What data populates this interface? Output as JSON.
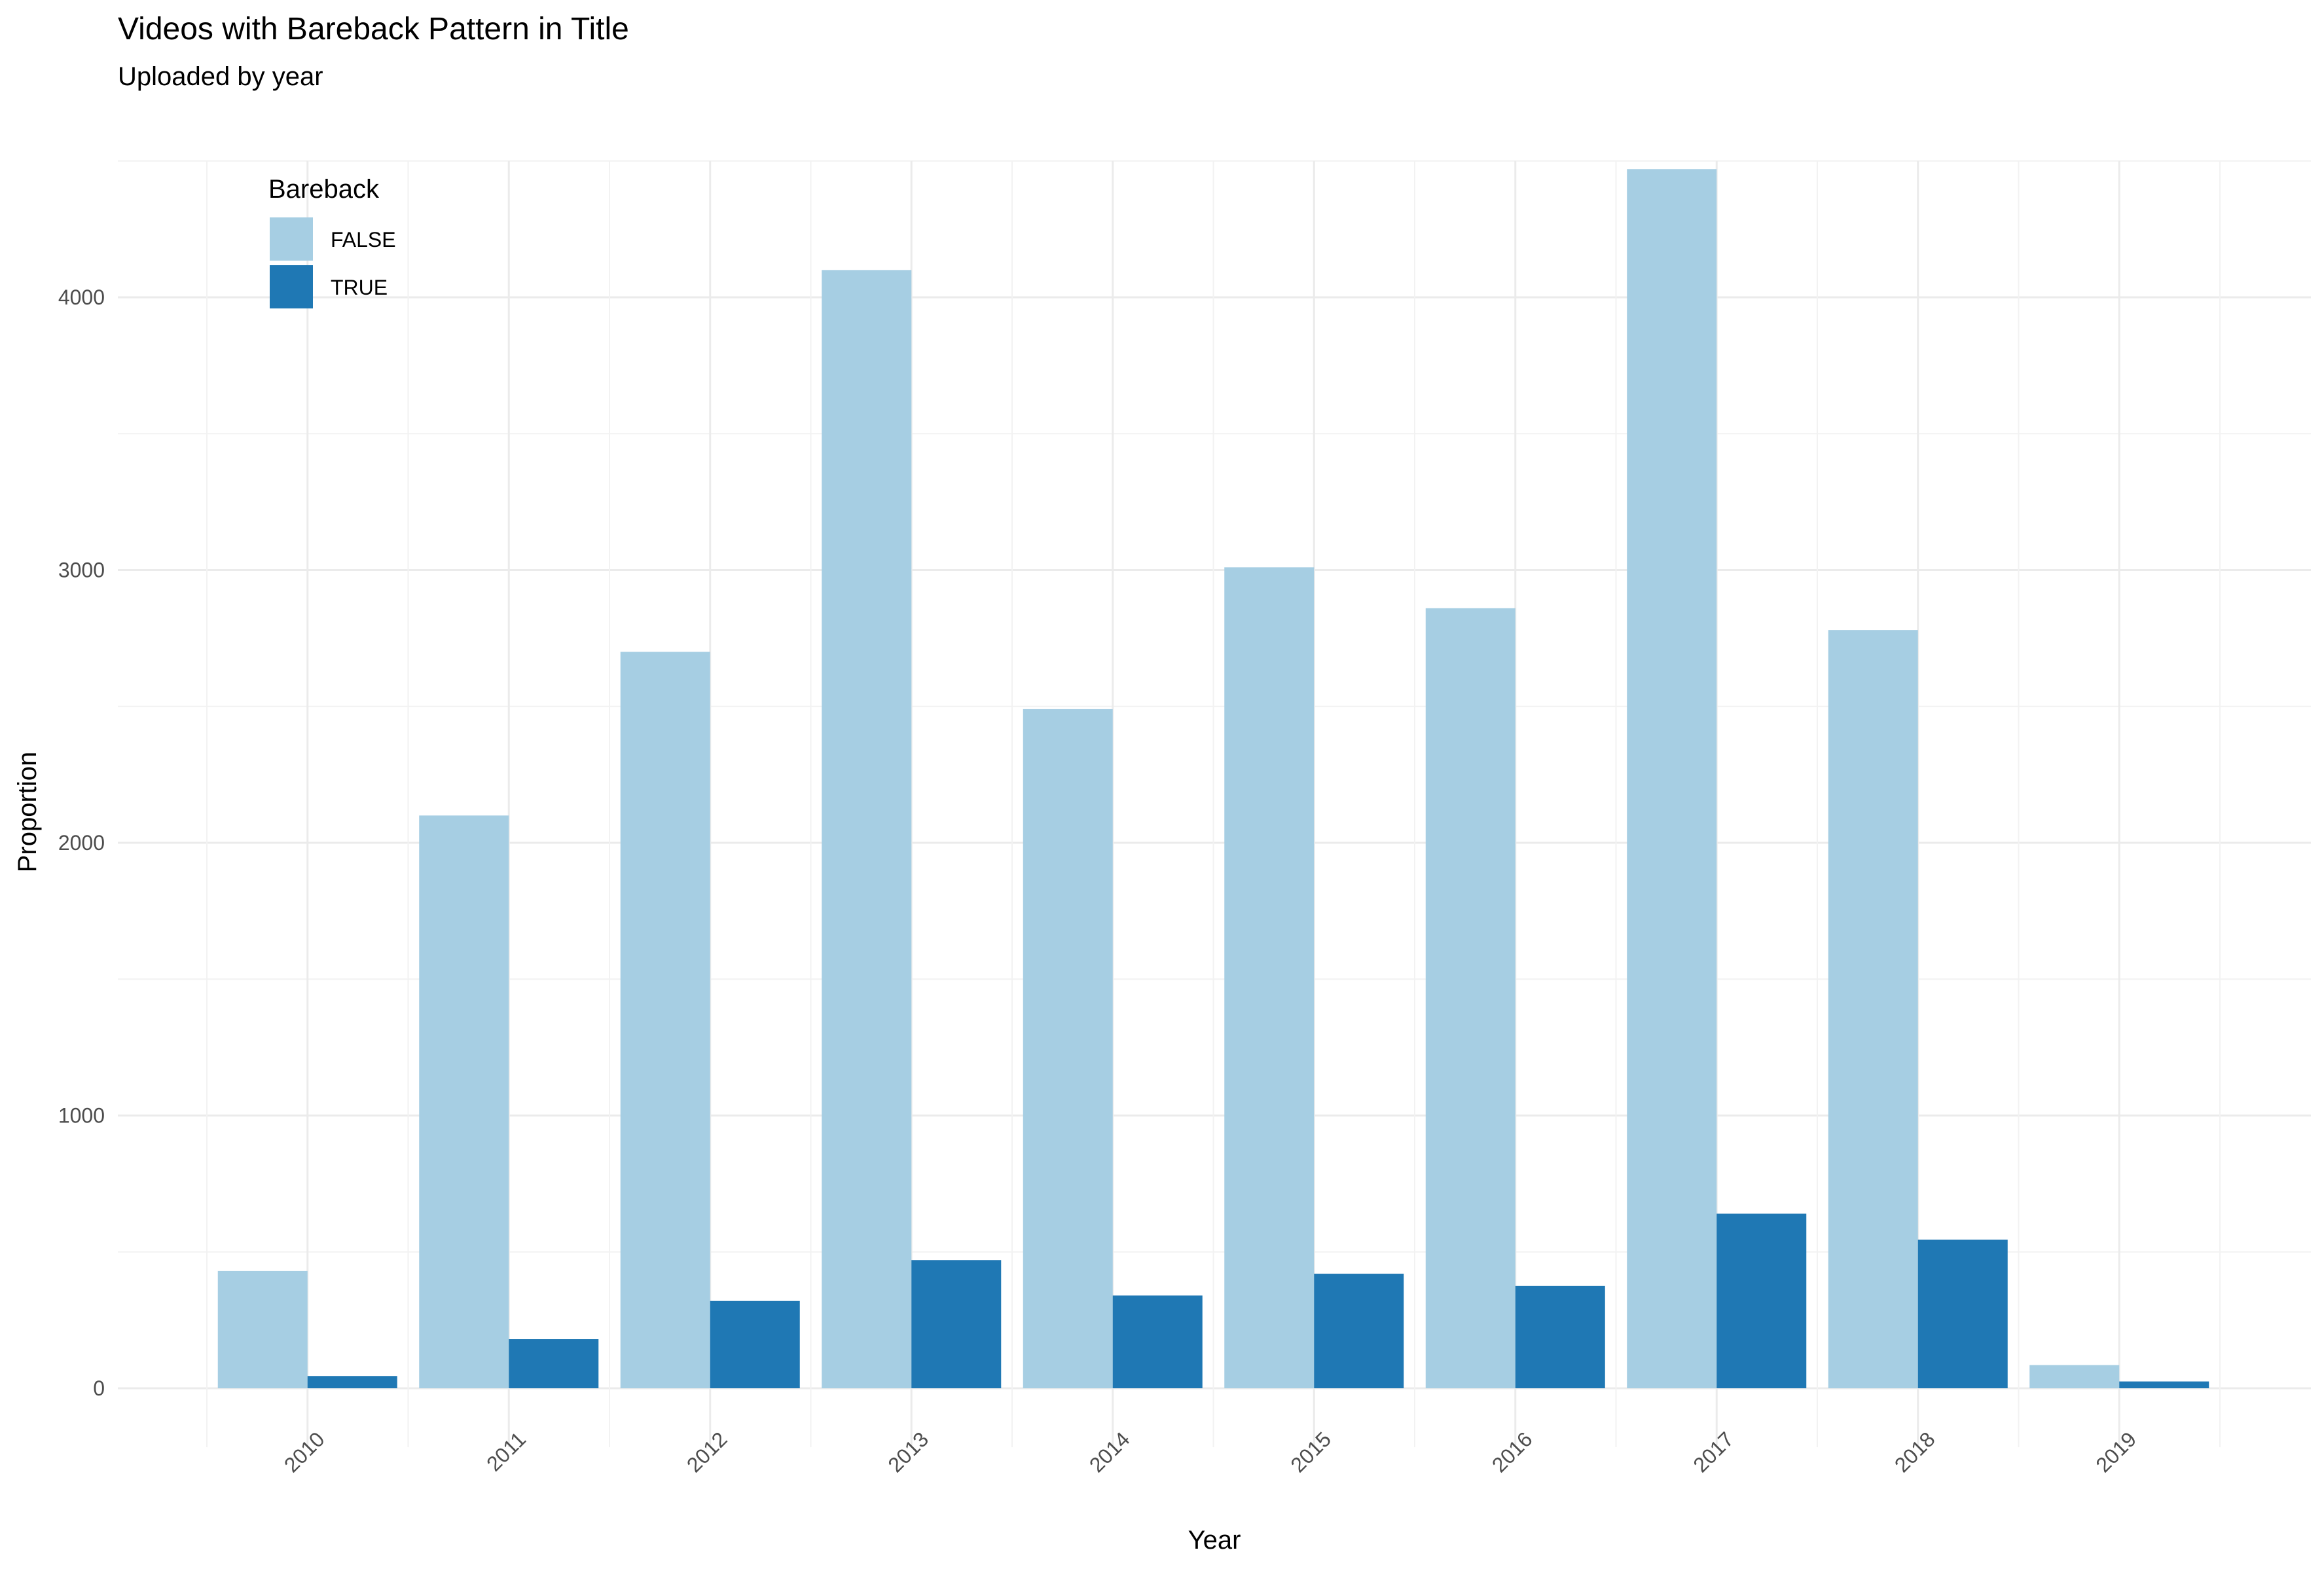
{
  "chart_data": {
    "type": "bar",
    "title": "Videos with Bareback Pattern in Title",
    "subtitle": "Uploaded by year",
    "xlabel": "Year",
    "ylabel": "Proportion",
    "categories": [
      "2010",
      "2011",
      "2012",
      "2013",
      "2014",
      "2015",
      "2016",
      "2017",
      "2018",
      "2019"
    ],
    "series": [
      {
        "name": "FALSE",
        "color": "#a6cee3",
        "values": [
          430,
          2100,
          2700,
          4100,
          2490,
          3010,
          2860,
          4470,
          2780,
          85
        ]
      },
      {
        "name": "TRUE",
        "color": "#1f78b4",
        "values": [
          45,
          180,
          320,
          470,
          340,
          420,
          375,
          640,
          545,
          25
        ]
      }
    ],
    "ylim": [
      0,
      4500
    ],
    "yticks": [
      0,
      1000,
      2000,
      3000,
      4000
    ],
    "grid": true,
    "legend": {
      "title": "Bareback",
      "placement": "top-left"
    }
  }
}
